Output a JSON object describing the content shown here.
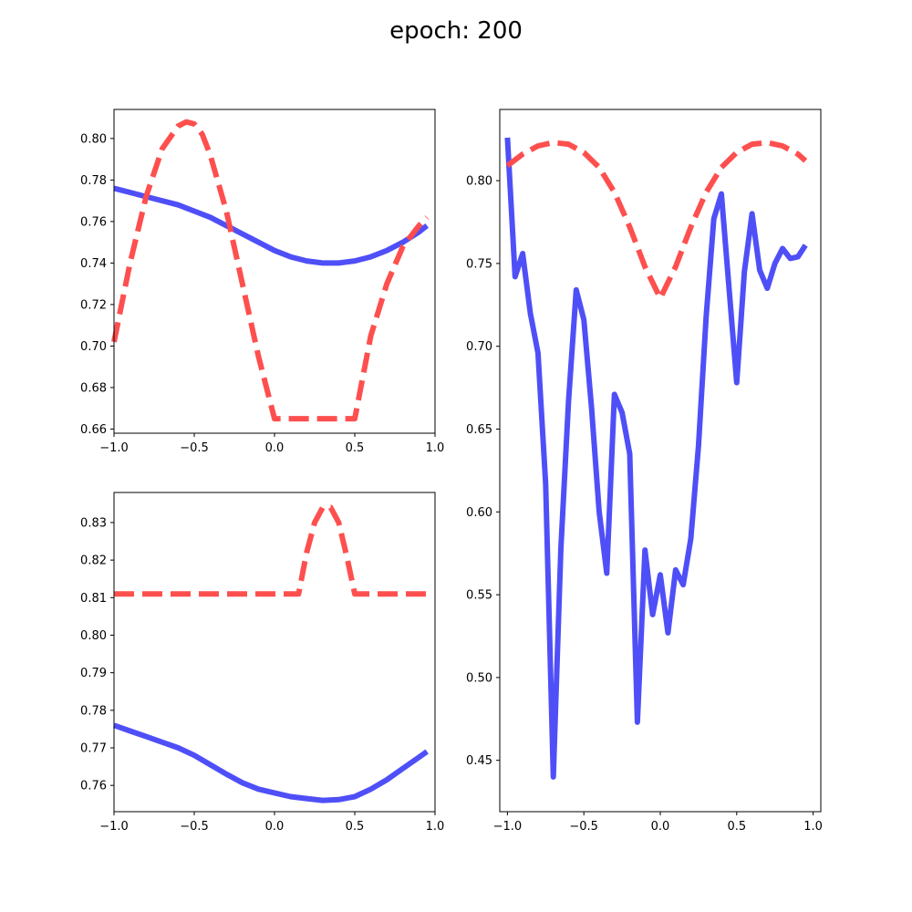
{
  "figure": {
    "title": "epoch: 200"
  },
  "colors": {
    "solid_series": "#4b4bf8",
    "dashed_series": "#fe4b4b"
  },
  "chart_data": [
    {
      "id": "top-left",
      "type": "line",
      "xlim": [
        -1.0,
        1.0
      ],
      "ylim": [
        0.658,
        0.814
      ],
      "xticks": [
        -1.0,
        -0.5,
        0.0,
        0.5,
        1.0
      ],
      "xtick_labels": [
        "−1.0",
        "−0.5",
        "0.0",
        "0.5",
        "1.0"
      ],
      "yticks": [
        0.66,
        0.68,
        0.7,
        0.72,
        0.74,
        0.76,
        0.78,
        0.8
      ],
      "ytick_labels": [
        "0.66",
        "0.68",
        "0.70",
        "0.72",
        "0.74",
        "0.76",
        "0.78",
        "0.80"
      ],
      "series": [
        {
          "name": "solid",
          "style": "solid",
          "color": "#4b4bf8",
          "x": [
            -1.0,
            -0.9,
            -0.8,
            -0.7,
            -0.6,
            -0.5,
            -0.4,
            -0.3,
            -0.2,
            -0.1,
            0.0,
            0.1,
            0.2,
            0.3,
            0.4,
            0.5,
            0.6,
            0.7,
            0.8,
            0.9,
            0.95
          ],
          "y": [
            0.776,
            0.774,
            0.772,
            0.77,
            0.768,
            0.765,
            0.762,
            0.758,
            0.754,
            0.75,
            0.746,
            0.743,
            0.741,
            0.74,
            0.74,
            0.741,
            0.743,
            0.746,
            0.75,
            0.755,
            0.758
          ]
        },
        {
          "name": "dashed",
          "style": "dashed",
          "color": "#fe4b4b",
          "x": [
            -1.0,
            -0.9,
            -0.8,
            -0.7,
            -0.6,
            -0.55,
            -0.5,
            -0.45,
            -0.4,
            -0.3,
            -0.2,
            -0.1,
            0.0,
            0.1,
            0.2,
            0.3,
            0.4,
            0.5,
            0.55,
            0.6,
            0.7,
            0.8,
            0.9,
            0.95
          ],
          "y": [
            0.702,
            0.74,
            0.772,
            0.795,
            0.806,
            0.808,
            0.807,
            0.802,
            0.792,
            0.765,
            0.73,
            0.695,
            0.665,
            0.665,
            0.665,
            0.665,
            0.665,
            0.665,
            0.685,
            0.705,
            0.73,
            0.748,
            0.758,
            0.762
          ]
        }
      ]
    },
    {
      "id": "bottom-left",
      "type": "line",
      "xlim": [
        -1.0,
        1.0
      ],
      "ylim": [
        0.753,
        0.838
      ],
      "xticks": [
        -1.0,
        -0.5,
        0.0,
        0.5,
        1.0
      ],
      "xtick_labels": [
        "−1.0",
        "−0.5",
        "0.0",
        "0.5",
        "1.0"
      ],
      "yticks": [
        0.76,
        0.77,
        0.78,
        0.79,
        0.8,
        0.81,
        0.82,
        0.83
      ],
      "ytick_labels": [
        "0.76",
        "0.77",
        "0.78",
        "0.79",
        "0.80",
        "0.81",
        "0.82",
        "0.83"
      ],
      "series": [
        {
          "name": "solid",
          "style": "solid",
          "color": "#4b4bf8",
          "x": [
            -1.0,
            -0.9,
            -0.8,
            -0.7,
            -0.6,
            -0.5,
            -0.4,
            -0.3,
            -0.2,
            -0.1,
            0.0,
            0.1,
            0.2,
            0.3,
            0.4,
            0.5,
            0.6,
            0.7,
            0.8,
            0.9,
            0.95
          ],
          "y": [
            0.776,
            0.7745,
            0.773,
            0.7715,
            0.77,
            0.768,
            0.7655,
            0.763,
            0.7607,
            0.759,
            0.758,
            0.757,
            0.7565,
            0.756,
            0.7562,
            0.757,
            0.759,
            0.7615,
            0.7645,
            0.7675,
            0.769
          ]
        },
        {
          "name": "dashed",
          "style": "dashed",
          "color": "#fe4b4b",
          "x": [
            -1.0,
            0.15,
            0.2,
            0.25,
            0.3,
            0.35,
            0.4,
            0.45,
            0.5,
            0.95
          ],
          "y": [
            0.811,
            0.811,
            0.822,
            0.83,
            0.834,
            0.834,
            0.83,
            0.821,
            0.811,
            0.811
          ]
        }
      ]
    },
    {
      "id": "right",
      "type": "line",
      "xlim": [
        -1.05,
        1.05
      ],
      "ylim": [
        0.419,
        0.843
      ],
      "xticks": [
        -1.0,
        -0.5,
        0.0,
        0.5,
        1.0
      ],
      "xtick_labels": [
        "−1.0",
        "−0.5",
        "0.0",
        "0.5",
        "1.0"
      ],
      "yticks": [
        0.45,
        0.5,
        0.55,
        0.6,
        0.65,
        0.7,
        0.75,
        0.8
      ],
      "ytick_labels": [
        "0.45",
        "0.50",
        "0.55",
        "0.60",
        "0.65",
        "0.70",
        "0.75",
        "0.80"
      ],
      "series": [
        {
          "name": "solid",
          "style": "solid",
          "color": "#4b4bf8",
          "x": [
            -1.0,
            -0.95,
            -0.9,
            -0.85,
            -0.8,
            -0.75,
            -0.7,
            -0.65,
            -0.6,
            -0.55,
            -0.5,
            -0.45,
            -0.4,
            -0.35,
            -0.3,
            -0.25,
            -0.2,
            -0.15,
            -0.1,
            -0.05,
            0.0,
            0.05,
            0.1,
            0.15,
            0.2,
            0.25,
            0.3,
            0.35,
            0.4,
            0.45,
            0.5,
            0.55,
            0.6,
            0.65,
            0.7,
            0.75,
            0.8,
            0.85,
            0.9,
            0.95
          ],
          "y": [
            0.826,
            0.742,
            0.756,
            0.72,
            0.696,
            0.617,
            0.44,
            0.578,
            0.667,
            0.734,
            0.716,
            0.663,
            0.6,
            0.563,
            0.671,
            0.66,
            0.635,
            0.473,
            0.577,
            0.538,
            0.562,
            0.527,
            0.565,
            0.556,
            0.584,
            0.64,
            0.718,
            0.777,
            0.792,
            0.735,
            0.678,
            0.745,
            0.78,
            0.746,
            0.735,
            0.75,
            0.759,
            0.753,
            0.754,
            0.761
          ]
        },
        {
          "name": "dashed",
          "style": "dashed",
          "color": "#fe4b4b",
          "x": [
            -1.0,
            -0.9,
            -0.8,
            -0.7,
            -0.6,
            -0.5,
            -0.4,
            -0.3,
            -0.2,
            -0.1,
            0.0,
            0.1,
            0.2,
            0.3,
            0.4,
            0.5,
            0.6,
            0.7,
            0.8,
            0.9,
            0.95
          ],
          "y": [
            0.809,
            0.816,
            0.821,
            0.823,
            0.822,
            0.817,
            0.808,
            0.793,
            0.772,
            0.748,
            0.729,
            0.748,
            0.772,
            0.793,
            0.808,
            0.817,
            0.822,
            0.823,
            0.821,
            0.816,
            0.812
          ]
        }
      ]
    }
  ]
}
